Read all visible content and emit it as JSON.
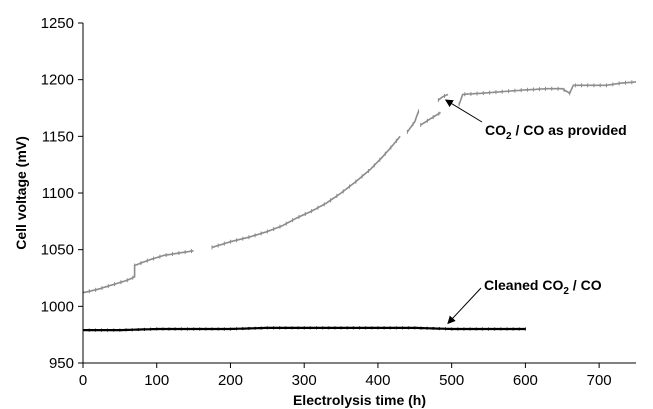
{
  "chart_data": {
    "type": "line",
    "title": "",
    "xlabel": "Electrolysis time (h)",
    "ylabel": "Cell voltage (mV)",
    "xlim": [
      0,
      750
    ],
    "ylim": [
      950,
      1250
    ],
    "xticks": [
      0,
      100,
      200,
      300,
      400,
      500,
      600,
      700
    ],
    "yticks": [
      950,
      1000,
      1050,
      1100,
      1150,
      1200,
      1250
    ],
    "grid": false,
    "legend": "none",
    "colors": {
      "provided": "#8c8c8c",
      "cleaned": "#000000"
    },
    "series": [
      {
        "name": "CO2 / CO as provided",
        "segments": [
          [
            [
              0,
              1012
            ],
            [
              20,
              1015
            ],
            [
              40,
              1019
            ],
            [
              60,
              1023
            ],
            [
              70,
              1026
            ],
            [
              70,
              1036
            ],
            [
              90,
              1041
            ],
            [
              110,
              1045
            ],
            [
              130,
              1047
            ],
            [
              150,
              1049
            ]
          ],
          [
            [
              175,
              1052
            ],
            [
              200,
              1057
            ],
            [
              225,
              1061
            ],
            [
              250,
              1066
            ],
            [
              270,
              1071
            ],
            [
              290,
              1078
            ],
            [
              310,
              1084
            ],
            [
              330,
              1091
            ],
            [
              350,
              1100
            ],
            [
              370,
              1110
            ],
            [
              390,
              1121
            ],
            [
              405,
              1131
            ],
            [
              420,
              1142
            ],
            [
              430,
              1150
            ]
          ],
          [
            [
              440,
              1154
            ],
            [
              450,
              1163
            ],
            [
              455,
              1172
            ]
          ],
          [
            [
              458,
              1160
            ],
            [
              470,
              1165
            ],
            [
              485,
              1171
            ]
          ],
          [
            [
              482,
              1182
            ],
            [
              488,
              1185
            ],
            [
              495,
              1187
            ]
          ],
          [
            [
              510,
              1178
            ],
            [
              515,
              1187
            ],
            [
              540,
              1188
            ],
            [
              560,
              1189
            ],
            [
              580,
              1190
            ],
            [
              600,
              1191
            ],
            [
              630,
              1192
            ],
            [
              650,
              1192
            ],
            [
              660,
              1188
            ],
            [
              665,
              1195
            ],
            [
              690,
              1195
            ],
            [
              710,
              1195
            ],
            [
              730,
              1197
            ],
            [
              750,
              1198
            ]
          ]
        ]
      },
      {
        "name": "Cleaned CO2 / CO",
        "segments": [
          [
            [
              0,
              979
            ],
            [
              50,
              979
            ],
            [
              100,
              980
            ],
            [
              150,
              980
            ],
            [
              200,
              980
            ],
            [
              250,
              981
            ],
            [
              300,
              981
            ],
            [
              350,
              981
            ],
            [
              400,
              981
            ],
            [
              450,
              981
            ],
            [
              500,
              980
            ],
            [
              550,
              980
            ],
            [
              600,
              980
            ]
          ]
        ]
      }
    ],
    "annotations": [
      {
        "text_main": "CO",
        "sub": "2",
        "text_rest": " / CO as provided",
        "arrow_to": [
          492,
          1182
        ]
      },
      {
        "text_main": "Cleaned CO",
        "sub": "2",
        "text_rest": " / CO",
        "arrow_to": [
          495,
          985
        ]
      }
    ]
  }
}
